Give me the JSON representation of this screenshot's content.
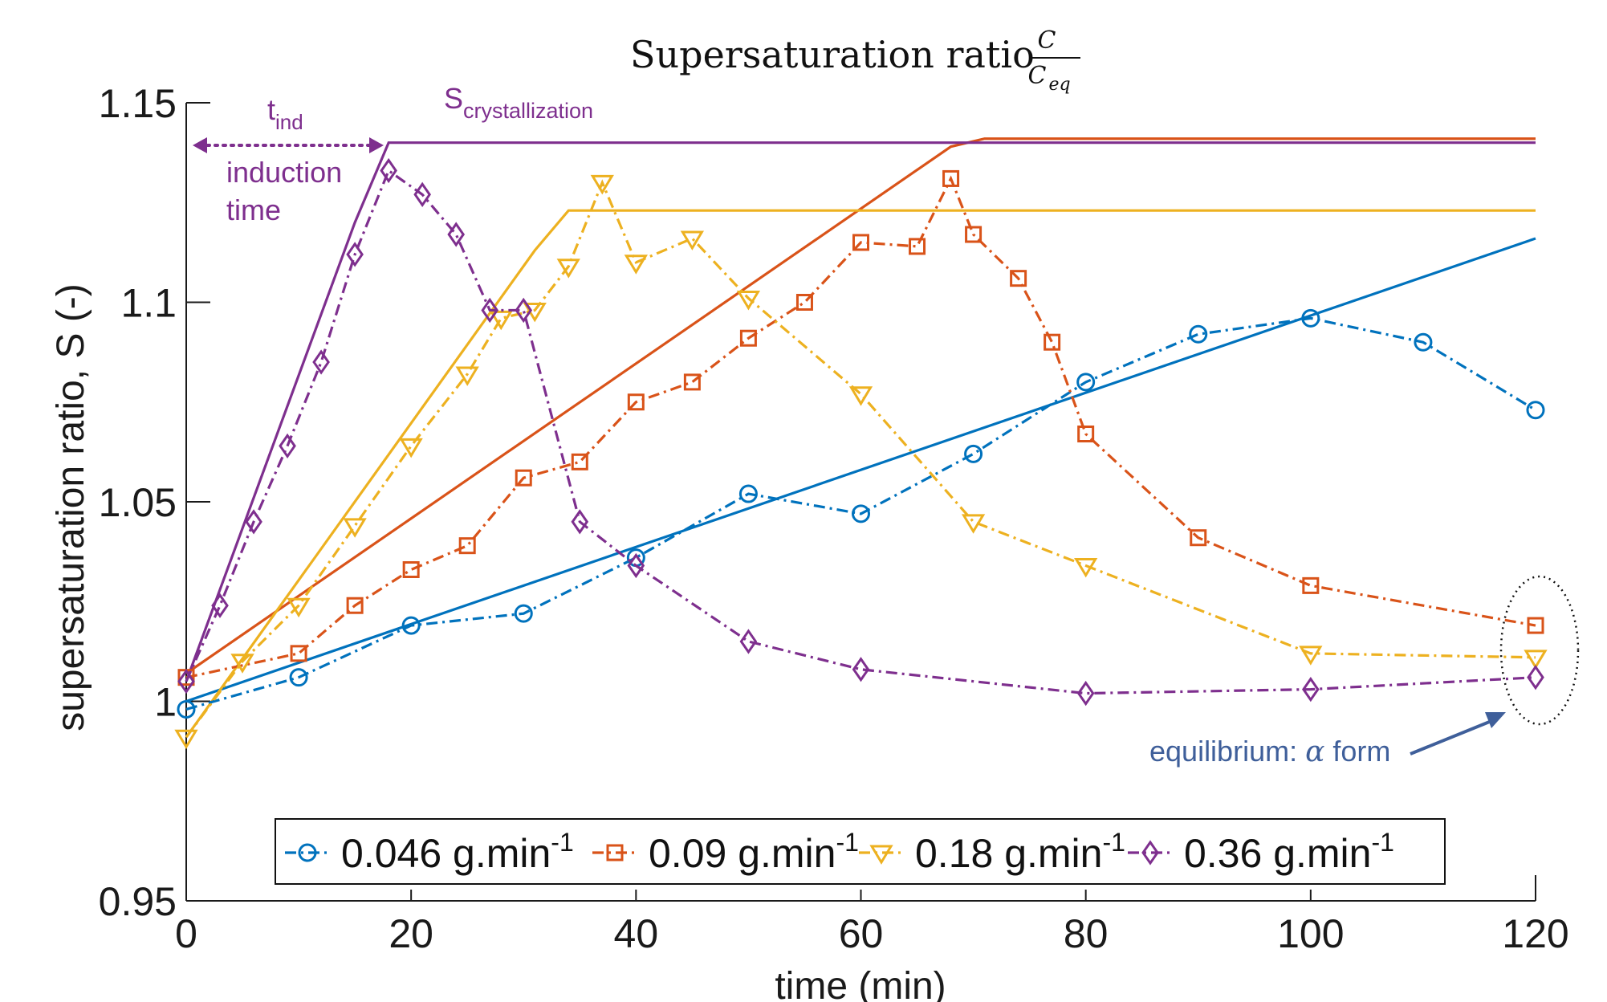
{
  "chart_data": {
    "type": "line",
    "title": "Supersaturation ratio",
    "title_fraction": {
      "numerator": "C",
      "denominator": "C",
      "denominator_sub": "eq"
    },
    "xlabel": "time (min)",
    "ylabel": "supersaturation ratio, S (-)",
    "xlim": [
      0,
      120
    ],
    "ylim": [
      0.95,
      1.15
    ],
    "xticks": [
      0,
      20,
      40,
      60,
      80,
      100,
      120
    ],
    "yticks": [
      0.95,
      1,
      1.05,
      1.1,
      1.15
    ],
    "xtick_labels": [
      "0",
      "20",
      "40",
      "60",
      "80",
      "100",
      "120"
    ],
    "ytick_labels": [
      "0.95",
      "1",
      "1.05",
      "1.1",
      "1.15"
    ],
    "grid": false,
    "legend_position": "bottom",
    "series": [
      {
        "name": "0.046 g.min",
        "name_sup": "-1",
        "color": "#0072BD",
        "marker": "circle",
        "measured": {
          "x": [
            0,
            10,
            20,
            30,
            40,
            50,
            60,
            70,
            80,
            90,
            100,
            110,
            120
          ],
          "y": [
            0.998,
            1.006,
            1.019,
            1.022,
            1.036,
            1.052,
            1.047,
            1.062,
            1.08,
            1.092,
            1.096,
            1.09,
            1.073
          ]
        },
        "model": {
          "x": [
            0,
            120
          ],
          "y": [
            1.0,
            1.116
          ]
        }
      },
      {
        "name": "0.09 g.min",
        "name_sup": "-1",
        "color": "#D95319",
        "marker": "square",
        "measured": {
          "x": [
            0,
            10,
            15,
            20,
            25,
            30,
            35,
            40,
            45,
            50,
            55,
            60,
            65,
            68,
            70,
            74,
            77,
            80,
            90,
            100,
            120
          ],
          "y": [
            1.006,
            1.012,
            1.024,
            1.033,
            1.039,
            1.056,
            1.06,
            1.075,
            1.08,
            1.091,
            1.1,
            1.115,
            1.114,
            1.131,
            1.117,
            1.106,
            1.09,
            1.067,
            1.041,
            1.029,
            1.019
          ]
        },
        "model": {
          "x": [
            0,
            68,
            71,
            120
          ],
          "y": [
            1.007,
            1.139,
            1.141,
            1.141
          ]
        }
      },
      {
        "name": "0.18 g.min",
        "name_sup": "-1",
        "color": "#EDB120",
        "marker": "triangle",
        "measured": {
          "x": [
            0,
            5,
            10,
            15,
            20,
            25,
            28,
            31,
            34,
            37,
            40,
            45,
            50,
            60,
            70,
            80,
            100,
            120
          ],
          "y": [
            0.991,
            1.01,
            1.024,
            1.044,
            1.064,
            1.082,
            1.096,
            1.098,
            1.109,
            1.13,
            1.11,
            1.116,
            1.101,
            1.077,
            1.045,
            1.034,
            1.012,
            1.011
          ]
        },
        "model": {
          "x": [
            0,
            31,
            34,
            120
          ],
          "y": [
            0.991,
            1.113,
            1.123,
            1.123
          ]
        }
      },
      {
        "name": "0.36 g.min",
        "name_sup": "-1",
        "color": "#7E2F8E",
        "marker": "diamond",
        "measured": {
          "x": [
            0,
            3,
            6,
            9,
            12,
            15,
            18,
            21,
            24,
            27,
            30,
            35,
            40,
            50,
            60,
            80,
            100,
            120
          ],
          "y": [
            1.005,
            1.024,
            1.045,
            1.064,
            1.085,
            1.112,
            1.133,
            1.127,
            1.117,
            1.098,
            1.098,
            1.045,
            1.034,
            1.015,
            1.008,
            1.002,
            1.003,
            1.006
          ]
        },
        "model": {
          "x": [
            0,
            15,
            18,
            120
          ],
          "y": [
            1.005,
            1.12,
            1.14,
            1.14
          ]
        }
      }
    ],
    "annotations": {
      "tind_main": "t",
      "tind_sub": "ind",
      "scryst_main": "S",
      "scryst_sub": "crystallization",
      "induction_line1": "induction",
      "induction_line2": "time",
      "equilibrium_prefix": "equilibrium: ",
      "equilibrium_alpha": "α",
      "equilibrium_suffix": " form"
    },
    "colors": {
      "annotation_purple": "#7E2F8E",
      "annotation_blue": "#3F5F9A",
      "axis": "#1a1a1a"
    }
  }
}
